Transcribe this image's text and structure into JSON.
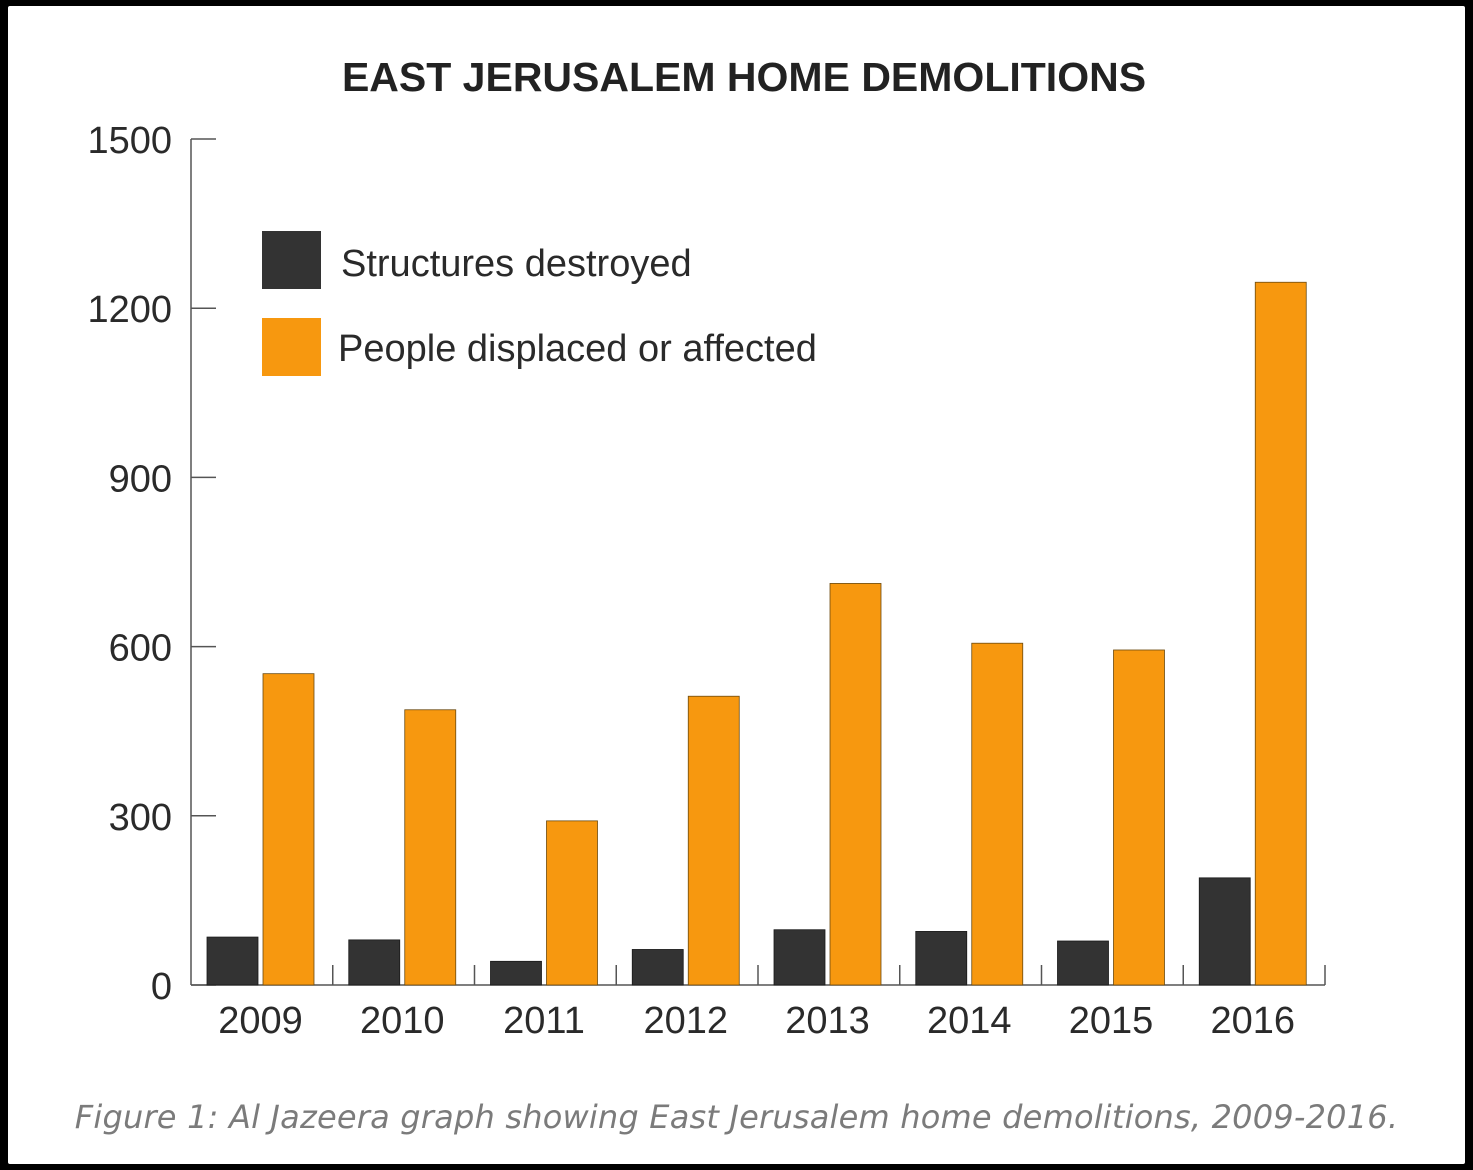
{
  "chart_data": {
    "type": "bar",
    "title": "EAST JERUSALEM HOME DEMOLITIONS",
    "categories": [
      "2009",
      "2010",
      "2011",
      "2012",
      "2013",
      "2014",
      "2015",
      "2016"
    ],
    "series": [
      {
        "name": "Structures destroyed",
        "color": "#333333",
        "values": [
          85,
          80,
          42,
          63,
          98,
          95,
          78,
          190
        ]
      },
      {
        "name": "People displaced or affected",
        "color": "#f7980f",
        "values": [
          552,
          488,
          291,
          512,
          712,
          606,
          594,
          1246
        ]
      }
    ],
    "ylim": [
      0,
      1500
    ],
    "yticks": [
      "0",
      "300",
      "600",
      "900",
      "1200",
      "1500"
    ],
    "xlabel": "",
    "ylabel": "",
    "grid": false,
    "legend_position": "top-left"
  },
  "caption": "Figure 1: Al Jazeera graph showing East Jerusalem home demolitions, 2009-2016."
}
